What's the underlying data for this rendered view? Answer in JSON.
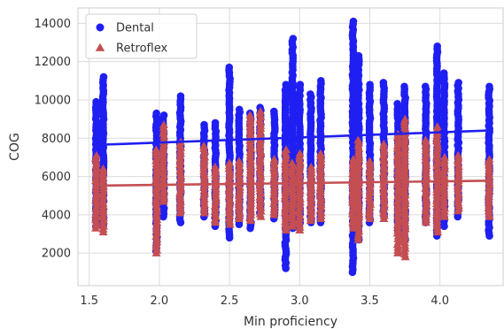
{
  "chart_data": {
    "type": "scatter",
    "xlabel": "Min proficiency",
    "ylabel": "COG",
    "xlim": [
      1.42,
      4.45
    ],
    "ylim": [
      300,
      14800
    ],
    "xticks": [
      1.5,
      2.0,
      2.5,
      3.0,
      3.5,
      4.0
    ],
    "xtick_labels": [
      "1.5",
      "2.0",
      "2.5",
      "3.0",
      "3.5",
      "4.0"
    ],
    "yticks": [
      2000,
      4000,
      6000,
      8000,
      10000,
      12000,
      14000
    ],
    "ytick_labels": [
      "2000",
      "4000",
      "6000",
      "8000",
      "10000",
      "12000",
      "14000"
    ],
    "grid": true,
    "legend_position": "top-left",
    "series": [
      {
        "name": "Dental",
        "marker": "circle",
        "color": "#1f1ff2",
        "regression": {
          "x": [
            1.55,
            4.35
          ],
          "y": [
            7650,
            8400
          ]
        },
        "columns": [
          {
            "x": 1.55,
            "ymin": 3400,
            "ymax": 9900
          },
          {
            "x": 1.6,
            "ymin": 3400,
            "ymax": 11200
          },
          {
            "x": 1.98,
            "ymin": 2100,
            "ymax": 9300
          },
          {
            "x": 2.03,
            "ymin": 3900,
            "ymax": 9200
          },
          {
            "x": 2.15,
            "ymin": 3600,
            "ymax": 10200
          },
          {
            "x": 2.32,
            "ymin": 3900,
            "ymax": 8700
          },
          {
            "x": 2.4,
            "ymin": 3400,
            "ymax": 8800
          },
          {
            "x": 2.5,
            "ymin": 2800,
            "ymax": 11700
          },
          {
            "x": 2.57,
            "ymin": 3500,
            "ymax": 9500
          },
          {
            "x": 2.65,
            "ymin": 3300,
            "ymax": 9300
          },
          {
            "x": 2.72,
            "ymin": 4100,
            "ymax": 9600
          },
          {
            "x": 2.82,
            "ymin": 3800,
            "ymax": 9400
          },
          {
            "x": 2.9,
            "ymin": 1200,
            "ymax": 10800
          },
          {
            "x": 2.95,
            "ymin": 3300,
            "ymax": 13200
          },
          {
            "x": 3.0,
            "ymin": 3300,
            "ymax": 10800
          },
          {
            "x": 3.08,
            "ymin": 3600,
            "ymax": 10300
          },
          {
            "x": 3.15,
            "ymin": 3600,
            "ymax": 11000
          },
          {
            "x": 3.38,
            "ymin": 1000,
            "ymax": 14100
          },
          {
            "x": 3.42,
            "ymin": 2700,
            "ymax": 12300
          },
          {
            "x": 3.5,
            "ymin": 3600,
            "ymax": 10800
          },
          {
            "x": 3.6,
            "ymin": 3900,
            "ymax": 10900
          },
          {
            "x": 3.7,
            "ymin": 3200,
            "ymax": 9800
          },
          {
            "x": 3.75,
            "ymin": 2700,
            "ymax": 10700
          },
          {
            "x": 3.9,
            "ymin": 3600,
            "ymax": 10700
          },
          {
            "x": 3.98,
            "ymin": 2900,
            "ymax": 12800
          },
          {
            "x": 4.03,
            "ymin": 3400,
            "ymax": 11400
          },
          {
            "x": 4.13,
            "ymin": 3900,
            "ymax": 10900
          },
          {
            "x": 4.35,
            "ymin": 2900,
            "ymax": 10700
          }
        ]
      },
      {
        "name": "Retroflex",
        "marker": "triangle",
        "color": "#c44e52",
        "regression": {
          "x": [
            1.55,
            4.35
          ],
          "y": [
            5520,
            5780
          ]
        },
        "columns": [
          {
            "x": 1.55,
            "ymin": 3300,
            "ymax": 7100
          },
          {
            "x": 1.6,
            "ymin": 3100,
            "ymax": 6400
          },
          {
            "x": 1.98,
            "ymin": 2000,
            "ymax": 7400
          },
          {
            "x": 2.03,
            "ymin": 4700,
            "ymax": 8700
          },
          {
            "x": 2.15,
            "ymin": 4100,
            "ymax": 7800
          },
          {
            "x": 2.32,
            "ymin": 4100,
            "ymax": 7600
          },
          {
            "x": 2.4,
            "ymin": 3600,
            "ymax": 6500
          },
          {
            "x": 2.5,
            "ymin": 3500,
            "ymax": 6700
          },
          {
            "x": 2.57,
            "ymin": 3800,
            "ymax": 6800
          },
          {
            "x": 2.65,
            "ymin": 3700,
            "ymax": 9200
          },
          {
            "x": 2.72,
            "ymin": 3900,
            "ymax": 9400
          },
          {
            "x": 2.82,
            "ymin": 4000,
            "ymax": 6900
          },
          {
            "x": 2.9,
            "ymin": 3200,
            "ymax": 7400
          },
          {
            "x": 2.95,
            "ymin": 3400,
            "ymax": 6700
          },
          {
            "x": 3.0,
            "ymin": 3200,
            "ymax": 7200
          },
          {
            "x": 3.08,
            "ymin": 3700,
            "ymax": 6500
          },
          {
            "x": 3.15,
            "ymin": 3800,
            "ymax": 7200
          },
          {
            "x": 3.38,
            "ymin": 3300,
            "ymax": 6900
          },
          {
            "x": 3.42,
            "ymin": 2700,
            "ymax": 7900
          },
          {
            "x": 3.5,
            "ymin": 3800,
            "ymax": 6800
          },
          {
            "x": 3.6,
            "ymin": 3800,
            "ymax": 7700
          },
          {
            "x": 3.7,
            "ymin": 2000,
            "ymax": 8200
          },
          {
            "x": 3.75,
            "ymin": 1800,
            "ymax": 9000
          },
          {
            "x": 3.9,
            "ymin": 3600,
            "ymax": 7900
          },
          {
            "x": 3.98,
            "ymin": 3100,
            "ymax": 8600
          },
          {
            "x": 4.03,
            "ymin": 3900,
            "ymax": 7000
          },
          {
            "x": 4.13,
            "ymin": 4200,
            "ymax": 7100
          },
          {
            "x": 4.35,
            "ymin": 3900,
            "ymax": 6900
          }
        ]
      }
    ]
  }
}
